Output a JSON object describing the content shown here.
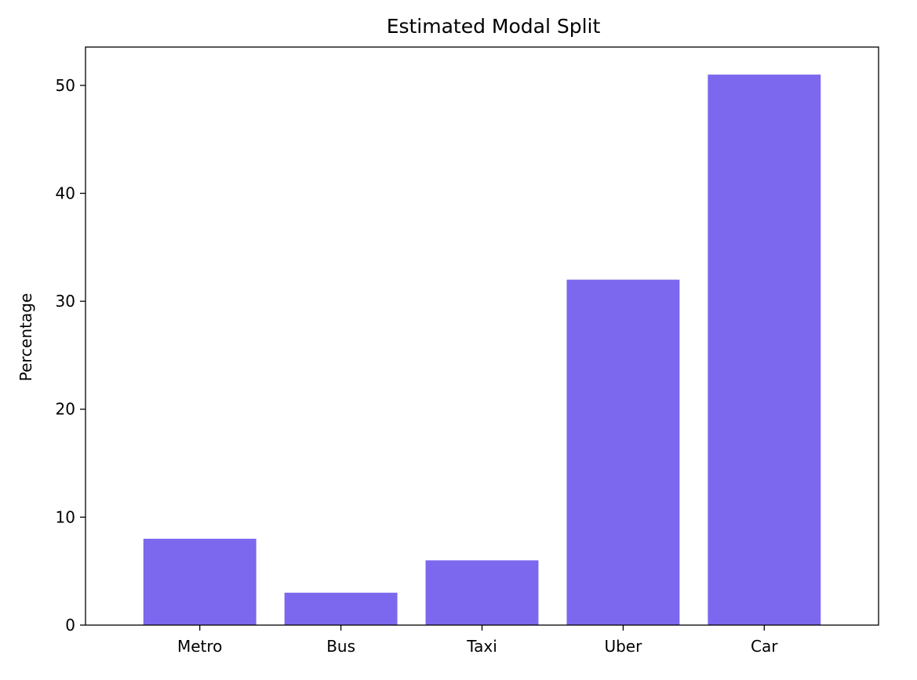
{
  "chart_data": {
    "type": "bar",
    "title": "Estimated Modal Split",
    "xlabel": "",
    "ylabel": "Percentage",
    "categories": [
      "Metro",
      "Bus",
      "Taxi",
      "Uber",
      "Car"
    ],
    "values": [
      8,
      3,
      6,
      32,
      51
    ],
    "ylim": [
      0,
      53.55
    ],
    "yticks": [
      0,
      10,
      20,
      30,
      40,
      50
    ],
    "grid": false,
    "legend": "none",
    "bar_color": "#7b68ee",
    "axis_color": "#000000"
  }
}
